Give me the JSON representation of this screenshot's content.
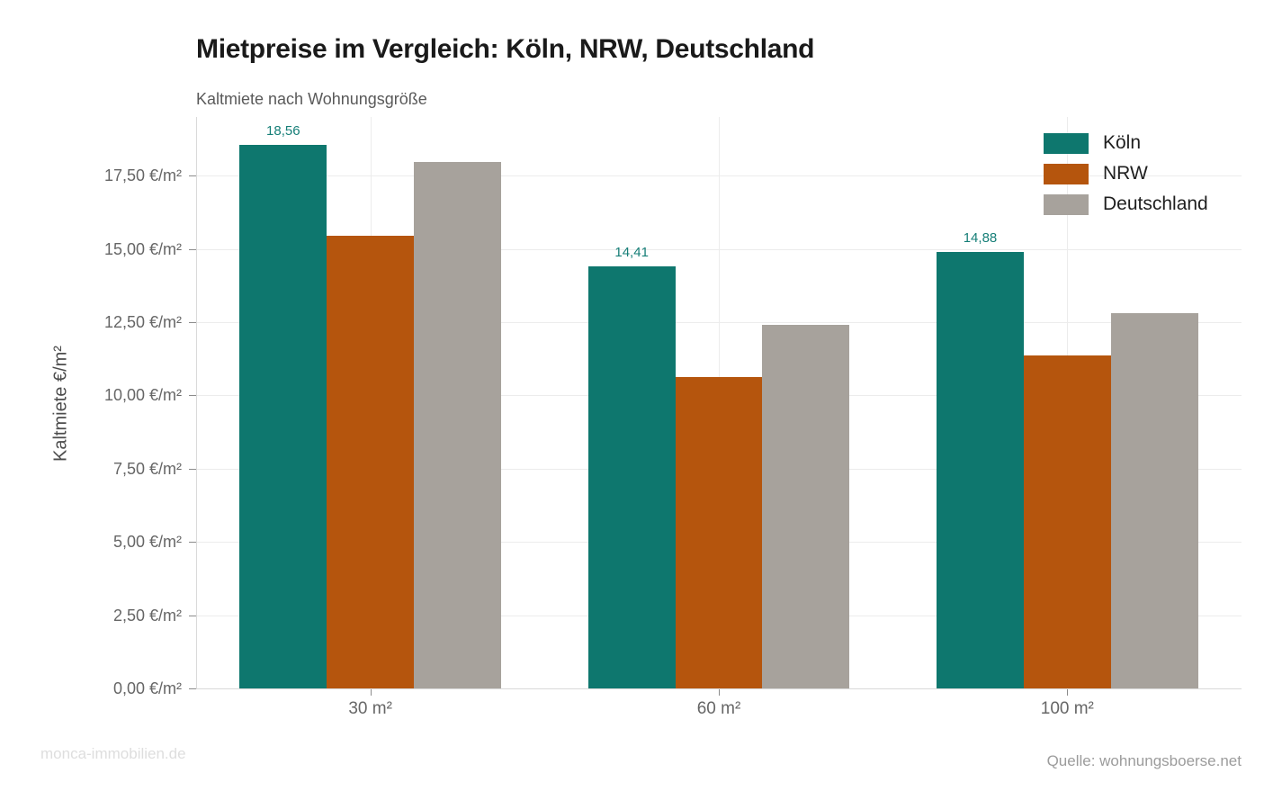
{
  "chart_data": {
    "type": "bar",
    "title": "Mietpreise im Vergleich: Köln, NRW, Deutschland",
    "subtitle": "Kaltmiete nach Wohnungsgröße",
    "ylabel": "Kaltmiete €/m²",
    "xlabel": "",
    "categories": [
      "30 m²",
      "60 m²",
      "100 m²"
    ],
    "series": [
      {
        "name": "Köln",
        "color": "#0E776E",
        "values": [
          18.56,
          14.41,
          14.88
        ],
        "value_labels": [
          "18,56",
          "14,41",
          "14,88"
        ]
      },
      {
        "name": "NRW",
        "color": "#B5550D",
        "values": [
          15.46,
          10.64,
          11.35
        ]
      },
      {
        "name": "Deutschland",
        "color": "#A7A29C",
        "values": [
          17.97,
          12.41,
          12.82
        ]
      }
    ],
    "ylim": [
      0,
      19.5
    ],
    "yticks": [
      {
        "value": 0,
        "label": "0,00 €/m²"
      },
      {
        "value": 2.5,
        "label": "2,50 €/m²"
      },
      {
        "value": 5,
        "label": "5,00 €/m²"
      },
      {
        "value": 7.5,
        "label": "7,50 €/m²"
      },
      {
        "value": 10,
        "label": "10,00 €/m²"
      },
      {
        "value": 12.5,
        "label": "12,50 €/m²"
      },
      {
        "value": 15,
        "label": "15,00 €/m²"
      },
      {
        "value": 17.5,
        "label": "17,50 €/m²"
      }
    ],
    "grid": {
      "horizontal": true,
      "vertical_category_lines": true
    },
    "legend": {
      "position": "top-right",
      "entries": [
        "Köln",
        "NRW",
        "Deutschland"
      ]
    },
    "value_label_color": "#157E77"
  },
  "footer": {
    "watermark": "monca-immobilien.de",
    "source": "Quelle: wohnungsboerse.net"
  },
  "colors": {
    "gridline": "#ECECEC",
    "axis_line": "#D9D9D9",
    "tick_text": "#666666",
    "title_text": "#1A1A1A",
    "subtitle_text": "#5A5A5A"
  }
}
